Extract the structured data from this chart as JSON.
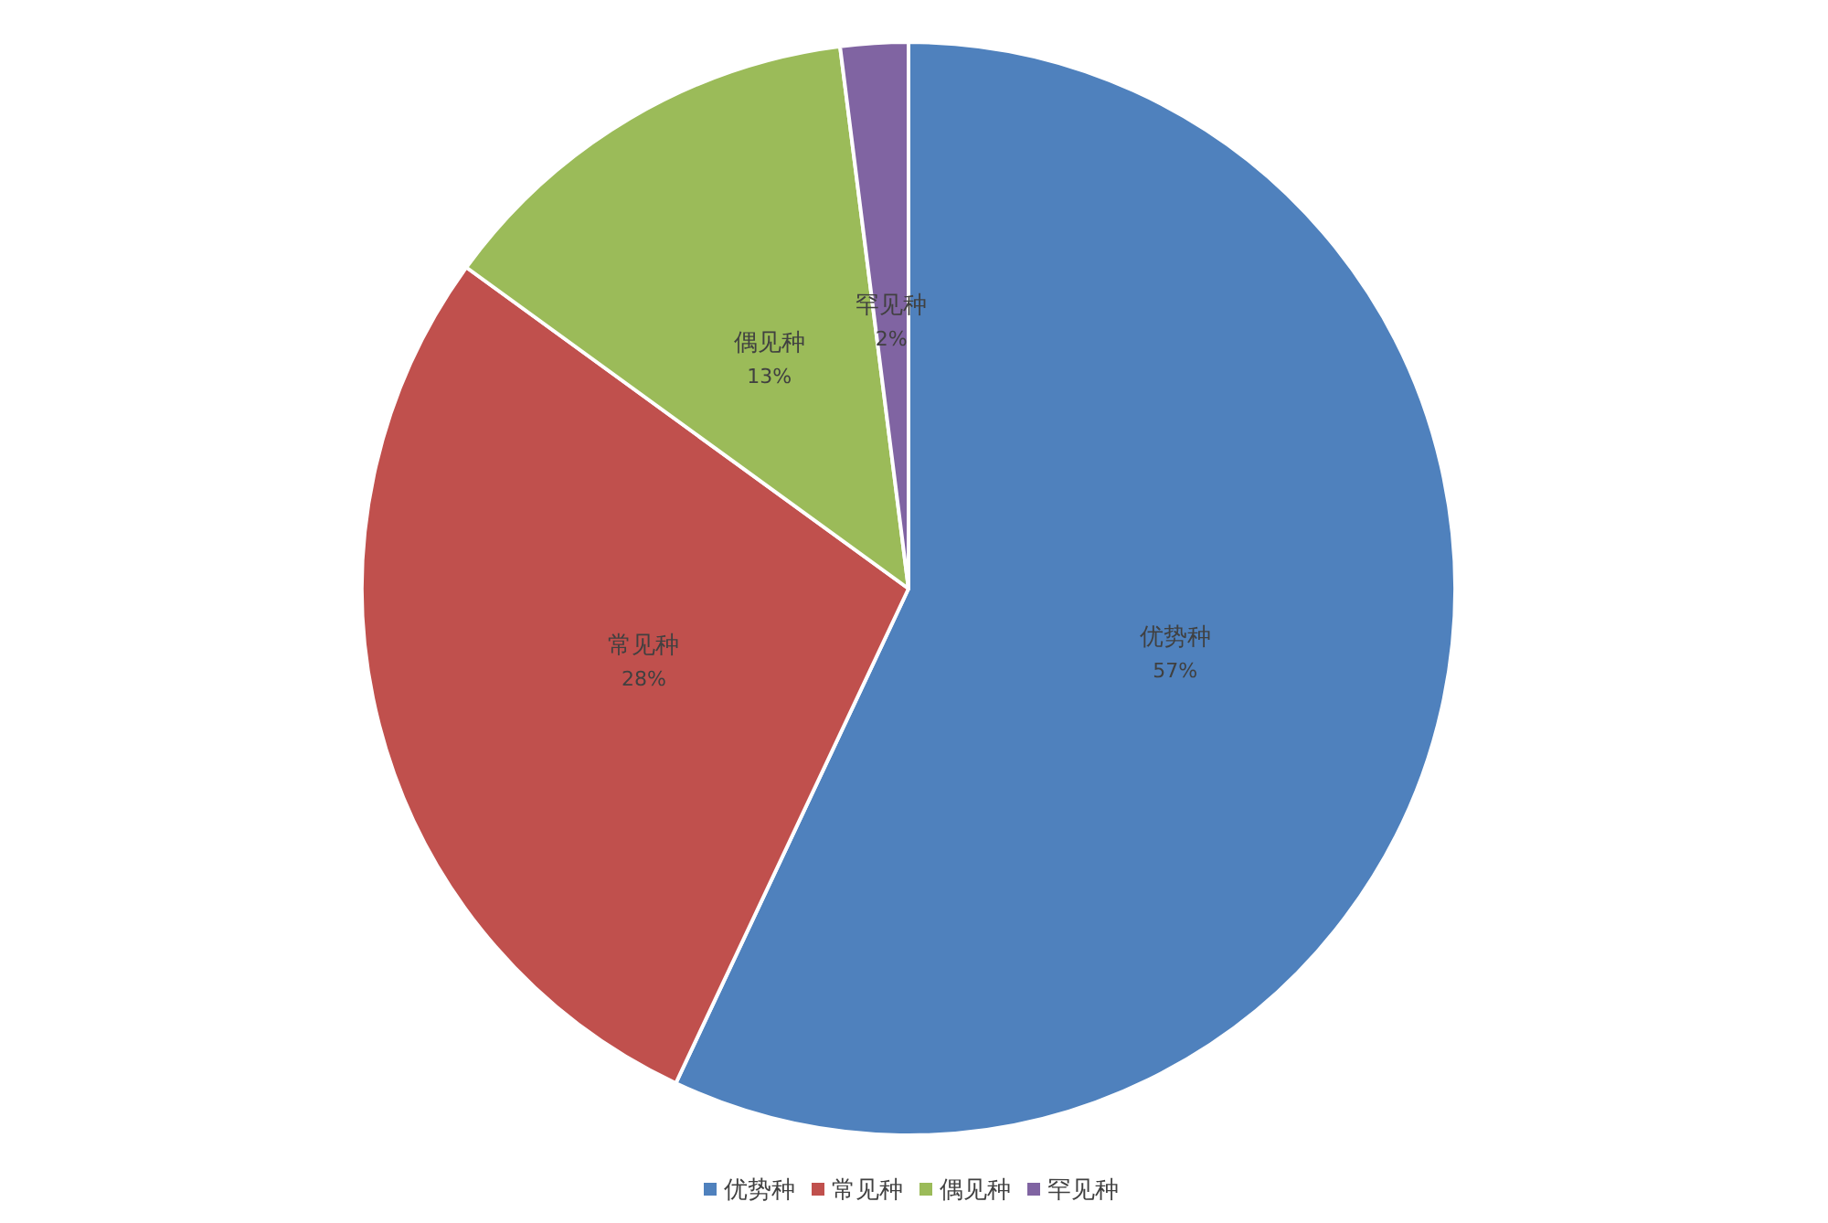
{
  "chart_data": {
    "type": "pie",
    "categories": [
      "优势种",
      "常见种",
      "偶见种",
      "罕见种"
    ],
    "values": [
      57,
      28,
      13,
      2
    ],
    "colors": [
      "#4f81bd",
      "#c0504d",
      "#9bbb59",
      "#8064a2"
    ],
    "value_labels": [
      "57%",
      "28%",
      "13%",
      "2%"
    ],
    "legend": "bottom"
  }
}
